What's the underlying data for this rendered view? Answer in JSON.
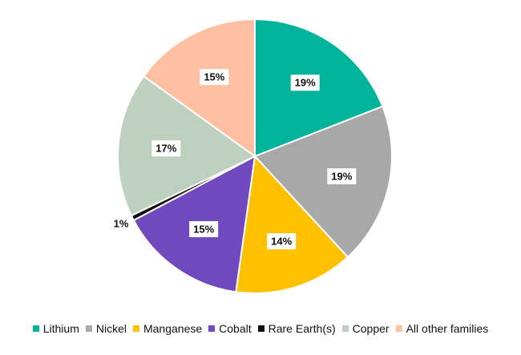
{
  "chart_data": {
    "type": "pie",
    "slices": [
      {
        "label": "Lithium",
        "value": 19,
        "display": "19%",
        "color": "#00b39a"
      },
      {
        "label": "Nickel",
        "value": 19,
        "display": "19%",
        "color": "#a8a8a8"
      },
      {
        "label": "Manganese",
        "value": 14,
        "display": "14%",
        "color": "#ffc000"
      },
      {
        "label": "Cobalt",
        "value": 15,
        "display": "15%",
        "color": "#7149be"
      },
      {
        "label": "Rare Earth(s)",
        "value": 0.6,
        "display": "1%",
        "color": "#111111"
      },
      {
        "label": "Copper",
        "value": 17,
        "display": "17%",
        "color": "#bed0bf"
      },
      {
        "label": "All other families",
        "value": 15,
        "display": "15%",
        "color": "#ffbfa0"
      }
    ],
    "legend_position": "bottom",
    "start_angle": "12 o'clock",
    "direction": "clockwise"
  }
}
